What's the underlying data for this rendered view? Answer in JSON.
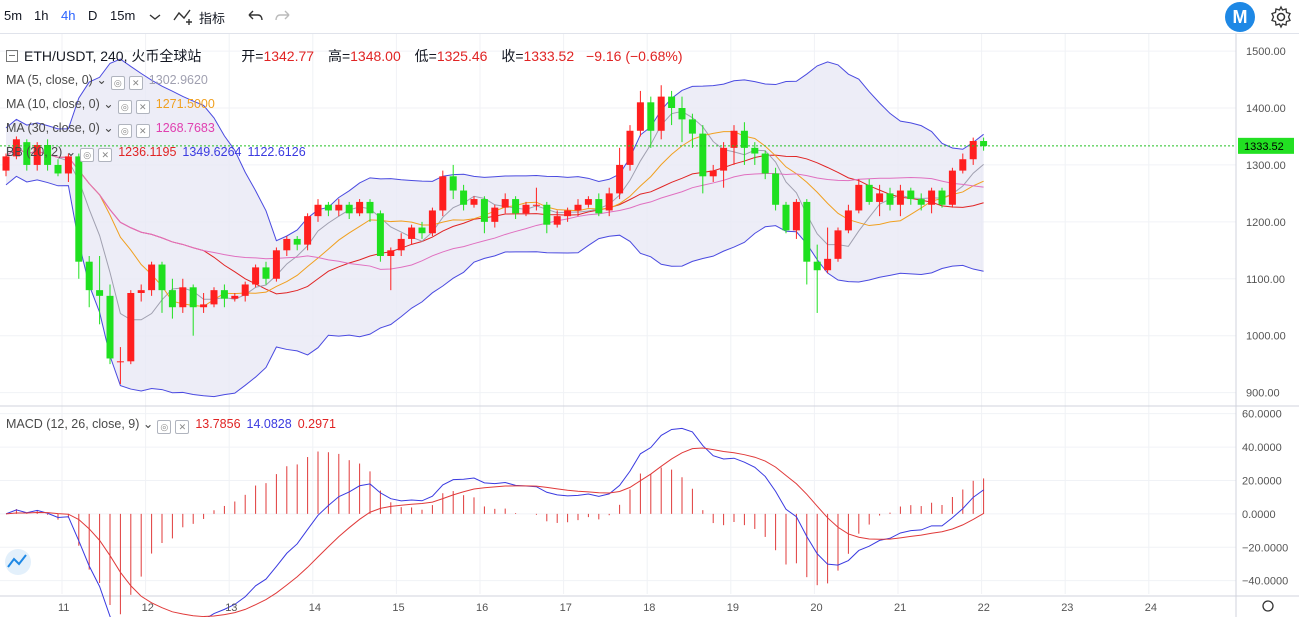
{
  "toolbar": {
    "intervals": [
      "5m",
      "1h",
      "4h",
      "D",
      "15m"
    ],
    "active_interval": "4h",
    "indicators_label": "指标"
  },
  "legend": {
    "symbol": "ETH/USDT, 240, 火币全球站",
    "open_label": "开=",
    "open": "1342.77",
    "high_label": "高=",
    "high": "1348.00",
    "low_label": "低=",
    "low": "1325.46",
    "close_label": "收=",
    "close": "1333.52",
    "change": "−9.16 (−0.68%)",
    "ma5": {
      "label": "MA (5, close, 0)",
      "value": "1302.9620",
      "color": "#a0a0b0"
    },
    "ma10": {
      "label": "MA (10, close, 0)",
      "value": "1271.5000",
      "color": "#f0a020"
    },
    "ma30": {
      "label": "MA (30, close, 0)",
      "value": "1268.7683",
      "color": "#e040b0"
    },
    "bb": {
      "label": "BB (20, 2)",
      "v1": "1236.1195",
      "v2": "1349.6264",
      "v3": "1122.6126"
    },
    "macd": {
      "label": "MACD (12, 26, close, 9)",
      "v1": "13.7856",
      "v2": "14.0828",
      "v3": "0.2971"
    }
  },
  "price_axis": {
    "ticks": [
      "1500.00",
      "1400.00",
      "1300.00",
      "1200.00",
      "1100.00",
      "1000.00",
      "900.00"
    ],
    "last_price": "1333.52"
  },
  "macd_axis": {
    "ticks": [
      "60.0000",
      "40.0000",
      "20.0000",
      "0.0000",
      "−20.0000",
      "−40.0000"
    ]
  },
  "time_axis": {
    "labels": [
      "11",
      "12",
      "13",
      "14",
      "15",
      "16",
      "17",
      "18",
      "19",
      "20",
      "21",
      "22",
      "23",
      "24"
    ]
  },
  "colors": {
    "up": "#ff1f1f",
    "down": "#1fe01f",
    "bb_fill": "#e8e8f5",
    "bb_line": "#4a4ae0",
    "macd_line": "#3a3ae0",
    "signal_line": "#e03a3a"
  },
  "chart_data": {
    "type": "candlestick",
    "candles": [
      [
        1290,
        1315,
        1280,
        1320
      ],
      [
        1315,
        1345,
        1310,
        1350
      ],
      [
        1340,
        1300,
        1290,
        1345
      ],
      [
        1300,
        1335,
        1290,
        1340
      ],
      [
        1335,
        1300,
        1290,
        1345
      ],
      [
        1300,
        1285,
        1280,
        1310
      ],
      [
        1285,
        1315,
        1270,
        1320
      ],
      [
        1315,
        1130,
        1100,
        1320
      ],
      [
        1130,
        1080,
        1050,
        1140
      ],
      [
        1080,
        1070,
        1020,
        1140
      ],
      [
        1070,
        960,
        950,
        1090
      ],
      [
        955,
        955,
        915,
        980
      ],
      [
        955,
        1075,
        950,
        1080
      ],
      [
        1075,
        1080,
        1060,
        1090
      ],
      [
        1080,
        1125,
        1070,
        1130
      ],
      [
        1125,
        1080,
        1040,
        1130
      ],
      [
        1080,
        1050,
        1030,
        1100
      ],
      [
        1050,
        1085,
        1040,
        1100
      ],
      [
        1085,
        1050,
        1000,
        1090
      ],
      [
        1050,
        1055,
        1040,
        1075
      ],
      [
        1055,
        1080,
        1050,
        1085
      ],
      [
        1080,
        1065,
        1050,
        1090
      ],
      [
        1065,
        1070,
        1060,
        1075
      ],
      [
        1070,
        1090,
        1060,
        1095
      ],
      [
        1090,
        1120,
        1085,
        1125
      ],
      [
        1120,
        1100,
        1090,
        1130
      ],
      [
        1100,
        1150,
        1095,
        1155
      ],
      [
        1150,
        1170,
        1140,
        1175
      ],
      [
        1170,
        1160,
        1150,
        1175
      ],
      [
        1160,
        1210,
        1150,
        1215
      ],
      [
        1210,
        1230,
        1200,
        1240
      ],
      [
        1230,
        1220,
        1210,
        1235
      ],
      [
        1220,
        1230,
        1210,
        1240
      ],
      [
        1230,
        1215,
        1205,
        1235
      ],
      [
        1215,
        1235,
        1210,
        1240
      ],
      [
        1235,
        1215,
        1200,
        1240
      ],
      [
        1215,
        1140,
        1130,
        1220
      ],
      [
        1140,
        1150,
        1080,
        1155
      ],
      [
        1150,
        1170,
        1140,
        1180
      ],
      [
        1170,
        1190,
        1160,
        1195
      ],
      [
        1190,
        1180,
        1170,
        1200
      ],
      [
        1180,
        1220,
        1175,
        1225
      ],
      [
        1220,
        1280,
        1210,
        1290
      ],
      [
        1280,
        1255,
        1240,
        1300
      ],
      [
        1255,
        1230,
        1220,
        1265
      ],
      [
        1230,
        1240,
        1225,
        1245
      ],
      [
        1240,
        1200,
        1180,
        1245
      ],
      [
        1200,
        1225,
        1190,
        1230
      ],
      [
        1225,
        1240,
        1215,
        1250
      ],
      [
        1240,
        1215,
        1205,
        1245
      ],
      [
        1215,
        1230,
        1210,
        1235
      ],
      [
        1230,
        1230,
        1220,
        1260
      ],
      [
        1230,
        1195,
        1180,
        1235
      ],
      [
        1195,
        1210,
        1190,
        1220
      ],
      [
        1210,
        1220,
        1200,
        1225
      ],
      [
        1220,
        1230,
        1210,
        1240
      ],
      [
        1230,
        1240,
        1225,
        1245
      ],
      [
        1240,
        1215,
        1210,
        1250
      ],
      [
        1220,
        1250,
        1210,
        1260
      ],
      [
        1250,
        1300,
        1240,
        1330
      ],
      [
        1300,
        1360,
        1290,
        1370
      ],
      [
        1360,
        1410,
        1350,
        1430
      ],
      [
        1410,
        1360,
        1330,
        1420
      ],
      [
        1360,
        1420,
        1345,
        1440
      ],
      [
        1420,
        1400,
        1370,
        1430
      ],
      [
        1400,
        1380,
        1340,
        1420
      ],
      [
        1380,
        1355,
        1330,
        1390
      ],
      [
        1355,
        1280,
        1250,
        1370
      ],
      [
        1280,
        1290,
        1270,
        1300
      ],
      [
        1290,
        1330,
        1260,
        1340
      ],
      [
        1330,
        1360,
        1300,
        1370
      ],
      [
        1360,
        1330,
        1300,
        1375
      ],
      [
        1330,
        1320,
        1300,
        1340
      ],
      [
        1320,
        1285,
        1275,
        1325
      ],
      [
        1285,
        1230,
        1220,
        1295
      ],
      [
        1230,
        1185,
        1180,
        1235
      ],
      [
        1185,
        1235,
        1170,
        1240
      ],
      [
        1235,
        1130,
        1090,
        1240
      ],
      [
        1130,
        1115,
        1040,
        1160
      ],
      [
        1115,
        1135,
        1110,
        1190
      ],
      [
        1135,
        1185,
        1130,
        1190
      ],
      [
        1185,
        1220,
        1180,
        1230
      ],
      [
        1220,
        1265,
        1215,
        1275
      ],
      [
        1265,
        1235,
        1230,
        1275
      ],
      [
        1235,
        1250,
        1210,
        1265
      ],
      [
        1250,
        1230,
        1220,
        1260
      ],
      [
        1230,
        1255,
        1210,
        1265
      ],
      [
        1255,
        1240,
        1230,
        1260
      ],
      [
        1240,
        1230,
        1220,
        1250
      ],
      [
        1230,
        1255,
        1215,
        1260
      ],
      [
        1255,
        1230,
        1225,
        1260
      ],
      [
        1230,
        1290,
        1225,
        1295
      ],
      [
        1290,
        1310,
        1285,
        1320
      ],
      [
        1310,
        1342,
        1300,
        1348
      ],
      [
        1342,
        1333,
        1325,
        1348
      ]
    ],
    "y_range": [
      880,
      1530
    ],
    "macd_range": [
      -48,
      64
    ]
  }
}
